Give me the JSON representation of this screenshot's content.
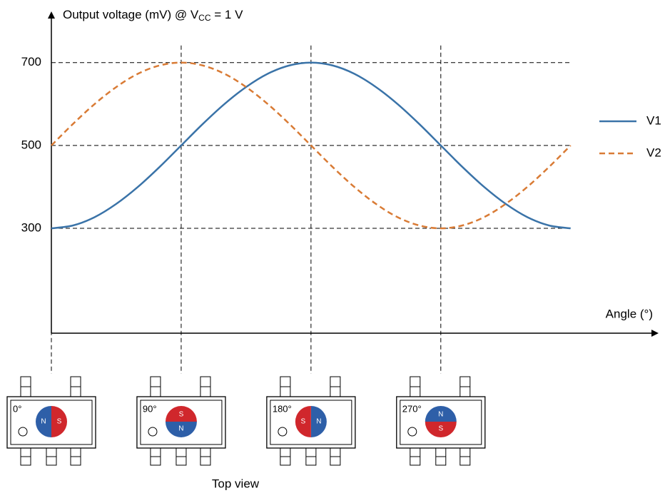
{
  "chart_data": {
    "type": "line",
    "y_label": {
      "text": "Output voltage (mV) @ V",
      "sub": "CC",
      "rest": " = 1 V"
    },
    "x_label": "Angle (°)",
    "x": [
      0,
      15,
      30,
      45,
      60,
      75,
      90,
      105,
      120,
      135,
      150,
      165,
      180,
      195,
      210,
      225,
      240,
      255,
      270,
      285,
      300,
      315,
      330,
      345,
      360
    ],
    "series": [
      {
        "name": "V1",
        "color": "#3a73a8",
        "dash": false,
        "values": [
          300,
          307,
          327,
          359,
          400,
          448,
          500,
          552,
          600,
          641,
          673,
          693,
          700,
          693,
          673,
          641,
          600,
          552,
          500,
          448,
          400,
          359,
          327,
          307,
          300
        ]
      },
      {
        "name": "V2",
        "color": "#d97b35",
        "dash": true,
        "values": [
          500,
          552,
          600,
          641,
          673,
          693,
          700,
          693,
          673,
          641,
          600,
          552,
          500,
          448,
          400,
          359,
          327,
          307,
          300,
          307,
          327,
          359,
          400,
          448,
          500
        ]
      }
    ],
    "xlim": [
      0,
      420
    ],
    "ylim": [
      47,
      820
    ],
    "xticks": [
      {
        "value": 0,
        "label": "0°"
      },
      {
        "value": 90,
        "label": "90°"
      },
      {
        "value": 180,
        "label": "180°"
      },
      {
        "value": 270,
        "label": "270°"
      }
    ],
    "yticks": [
      300,
      500,
      700
    ],
    "grid": true,
    "legend": "right",
    "poles": [
      {
        "name": "N",
        "color": "#2e5fa8"
      },
      {
        "name": "S",
        "color": "#d0272c"
      }
    ],
    "caption": "Top view"
  }
}
